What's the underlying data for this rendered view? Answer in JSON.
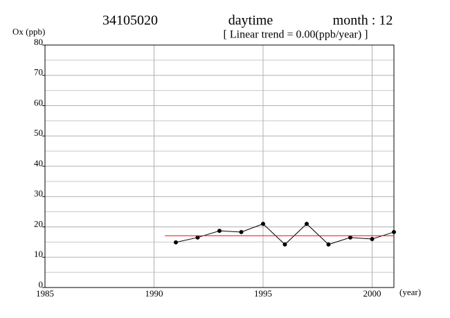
{
  "chart_data": {
    "type": "line",
    "title": [
      "34105020",
      "daytime",
      "month : 12"
    ],
    "subtitle": "[ Linear trend = 0.00(ppb/year) ]",
    "y_label": "Ox (ppb)",
    "x_label": "(year)",
    "xlim": [
      1985,
      2001
    ],
    "xticks": [
      1985,
      1990,
      1995,
      2000
    ],
    "ylim": [
      0,
      80
    ],
    "yticks": [
      0,
      10,
      20,
      30,
      40,
      50,
      60,
      70,
      80
    ],
    "minor_yticks": [
      5,
      15,
      25,
      35,
      45,
      55,
      65,
      75
    ],
    "grid": true,
    "series": [
      {
        "name": "Ox",
        "color": "#000000",
        "marker": true,
        "x": [
          1991,
          1992,
          1993,
          1994,
          1995,
          1996,
          1997,
          1998,
          1999,
          2000,
          2001
        ],
        "values": [
          14.9,
          16.5,
          18.7,
          18.3,
          21.0,
          14.2,
          21.0,
          14.2,
          16.5,
          16.0,
          18.3
        ]
      },
      {
        "name": "Linear trend",
        "color": "#ff0000",
        "marker": false,
        "x": [
          1990.5,
          2001
        ],
        "values": [
          17.1,
          17.1
        ]
      }
    ]
  }
}
